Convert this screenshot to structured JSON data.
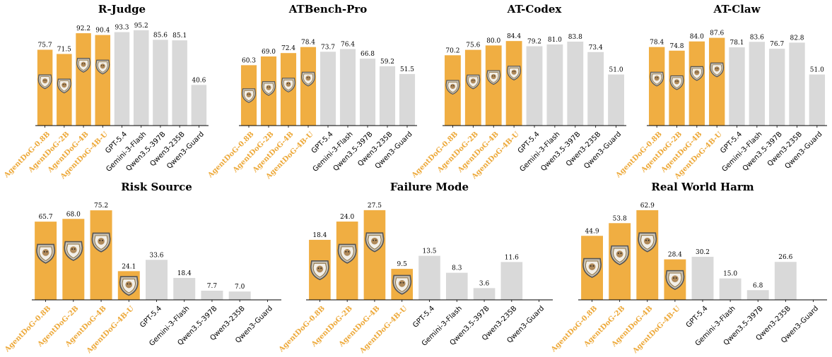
{
  "chart_data": [
    {
      "type": "bar",
      "title": "R-Judge",
      "categories": [
        "AgentDoG-0.8B",
        "AgentDoG-2B",
        "AgentDoG-4B",
        "AgentDoG-4B-U",
        "GPT-5.4",
        "Gemini-3-Flash",
        "Qwen3.5-397B",
        "Qwen3-235B",
        "Qwen3-Guard"
      ],
      "values": [
        75.7,
        71.5,
        92.2,
        90.4,
        93.3,
        95.2,
        85.6,
        85.1,
        40.6
      ],
      "value_labels": [
        "75.7",
        "71.5",
        "92.2",
        "90.4",
        "93.3",
        "95.2",
        "85.6",
        "85.1",
        "40.6"
      ],
      "colors": [
        "#f0ae42",
        "#f0ae42",
        "#f0ae42",
        "#f0ae42",
        "#d9d9d9",
        "#d9d9d9",
        "#d9d9d9",
        "#d9d9d9",
        "#d9d9d9"
      ],
      "ylim": [
        0,
        100
      ]
    },
    {
      "type": "bar",
      "title": "ATBench-Pro",
      "categories": [
        "AgentDoG-0.8B",
        "AgentDoG-2B",
        "AgentDoG-4B",
        "AgentDoG-4B-U",
        "GPT-5.4",
        "Gemini-3-Flash",
        "Qwen3.5-397B",
        "Qwen3-235B",
        "Qwen3-Guard"
      ],
      "values": [
        60.3,
        69.0,
        72.4,
        78.4,
        73.7,
        76.4,
        66.8,
        59.2,
        51.5
      ],
      "value_labels": [
        "60.3",
        "69.0",
        "72.4",
        "78.4",
        "73.7",
        "76.4",
        "66.8",
        "59.2",
        "51.5"
      ],
      "colors": [
        "#f0ae42",
        "#f0ae42",
        "#f0ae42",
        "#f0ae42",
        "#d9d9d9",
        "#d9d9d9",
        "#d9d9d9",
        "#d9d9d9",
        "#d9d9d9"
      ],
      "ylim": [
        0,
        100
      ]
    },
    {
      "type": "bar",
      "title": "AT-Codex",
      "categories": [
        "AgentDoG-0.8B",
        "AgentDoG-2B",
        "AgentDoG-4B",
        "AgentDoG-4B-U",
        "GPT-5.4",
        "Gemini-3-Flash",
        "Qwen3.5-397B",
        "Qwen3-235B",
        "Qwen3-Guard"
      ],
      "values": [
        70.2,
        75.6,
        80.0,
        84.4,
        79.2,
        81.0,
        83.8,
        73.4,
        51.0
      ],
      "value_labels": [
        "70.2",
        "75.6",
        "80.0",
        "84.4",
        "79.2",
        "81.0",
        "83.8",
        "73.4",
        "51.0"
      ],
      "colors": [
        "#f0ae42",
        "#f0ae42",
        "#f0ae42",
        "#f0ae42",
        "#d9d9d9",
        "#d9d9d9",
        "#d9d9d9",
        "#d9d9d9",
        "#d9d9d9"
      ],
      "ylim": [
        0,
        100
      ]
    },
    {
      "type": "bar",
      "title": "AT-Claw",
      "categories": [
        "AgentDoG-0.8B",
        "AgentDoG-2B",
        "AgentDoG-4B",
        "AgentDoG-4B-U",
        "GPT-5.4",
        "Gemini-3-Flash",
        "Qwen3.5-397B",
        "Qwen3-235B",
        "Qwen3-Guard"
      ],
      "values": [
        78.4,
        74.8,
        84.0,
        87.6,
        78.1,
        83.6,
        76.7,
        82.8,
        51.0
      ],
      "value_labels": [
        "78.4",
        "74.8",
        "84.0",
        "87.6",
        "78.1",
        "83.6",
        "76.7",
        "82.8",
        "51.0"
      ],
      "colors": [
        "#f0ae42",
        "#f0ae42",
        "#f0ae42",
        "#f0ae42",
        "#d9d9d9",
        "#d9d9d9",
        "#d9d9d9",
        "#d9d9d9",
        "#d9d9d9"
      ],
      "ylim": [
        0,
        100
      ]
    },
    {
      "type": "bar",
      "title": "Risk Source",
      "categories": [
        "AgentDoG-0.8B",
        "AgentDoG-2B",
        "AgentDoG-4B",
        "AgentDoG-4B-U",
        "GPT-5.4",
        "Gemini-3-Flash",
        "Qwen3.5-397B",
        "Qwen3-235B",
        "Qwen3-Guard"
      ],
      "values": [
        65.7,
        68.0,
        75.2,
        24.1,
        33.6,
        18.4,
        7.7,
        7.0,
        null
      ],
      "value_labels": [
        "65.7",
        "68.0",
        "75.2",
        "24.1",
        "33.6",
        "18.4",
        "7.7",
        "7.0",
        null
      ],
      "colors": [
        "#f0ae42",
        "#f0ae42",
        "#f0ae42",
        "#f0ae42",
        "#d9d9d9",
        "#d9d9d9",
        "#d9d9d9",
        "#d9d9d9",
        "#d9d9d9"
      ],
      "ylim": [
        0,
        80
      ]
    },
    {
      "type": "bar",
      "title": "Failure Mode",
      "categories": [
        "AgentDoG-0.8B",
        "AgentDoG-2B",
        "AgentDoG-4B",
        "AgentDoG-4B-U",
        "GPT-5.4",
        "Gemini-3-Flash",
        "Qwen3.5-397B",
        "Qwen3-235B",
        "Qwen3-Guard"
      ],
      "values": [
        18.4,
        24.0,
        27.5,
        9.5,
        13.5,
        8.3,
        3.6,
        11.6,
        null
      ],
      "value_labels": [
        "18.4",
        "24.0",
        "27.5",
        "9.5",
        "13.5",
        "8.3",
        "3.6",
        "11.6",
        null
      ],
      "colors": [
        "#f0ae42",
        "#f0ae42",
        "#f0ae42",
        "#f0ae42",
        "#d9d9d9",
        "#d9d9d9",
        "#d9d9d9",
        "#d9d9d9",
        "#d9d9d9"
      ],
      "ylim": [
        0,
        29.2
      ]
    },
    {
      "type": "bar",
      "title": "Real World Harm",
      "categories": [
        "AgentDoG-0.8B",
        "AgentDoG-2B",
        "AgentDoG-4B",
        "AgentDoG-4B-U",
        "GPT-5.4",
        "Gemini-3-Flash",
        "Qwen3.5-397B",
        "Qwen3-235B",
        "Qwen3-Guard"
      ],
      "values": [
        44.9,
        53.8,
        62.9,
        28.4,
        30.2,
        15.0,
        6.8,
        26.6,
        null
      ],
      "value_labels": [
        "44.9",
        "53.8",
        "62.9",
        "28.4",
        "30.2",
        "15.0",
        "6.8",
        "26.6",
        null
      ],
      "colors": [
        "#f0ae42",
        "#f0ae42",
        "#f0ae42",
        "#f0ae42",
        "#d9d9d9",
        "#d9d9d9",
        "#d9d9d9",
        "#d9d9d9",
        "#d9d9d9"
      ],
      "ylim": [
        0,
        66.8
      ]
    }
  ]
}
